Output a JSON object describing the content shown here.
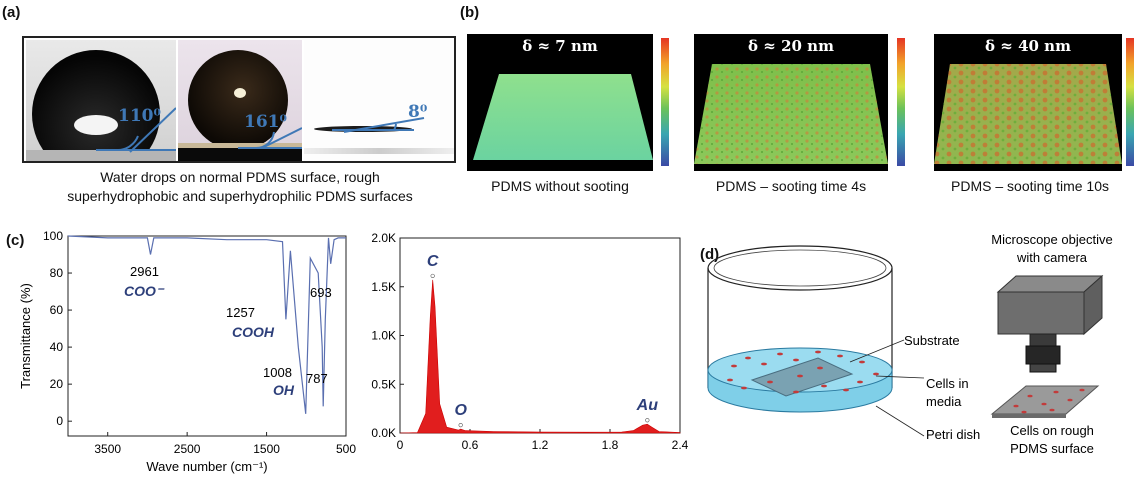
{
  "panel_a": {
    "label": "(a)",
    "angles": [
      "110⁰",
      "161⁰",
      "8⁰"
    ],
    "caption": [
      "Water drops on normal PDMS surface, rough",
      "superhydrophobic and superhydrophilic PDMS surfaces"
    ]
  },
  "panel_b": {
    "label": "(b)",
    "surfaces": [
      {
        "title": "δ ≈ 7 nm",
        "caption": "PDMS without sooting"
      },
      {
        "title": "δ ≈ 20 nm",
        "caption": "PDMS – sooting time 4s"
      },
      {
        "title": "δ ≈ 40 nm",
        "caption": "PDMS – sooting time 10s"
      }
    ]
  },
  "panel_c": {
    "label": "(c)",
    "ftir": {
      "type": "line",
      "ylabel": "Transmittance (%)",
      "xlabel": "Wave number (cm⁻¹)",
      "xticks": [
        "3500",
        "2500",
        "1500",
        "500"
      ],
      "yticks": [
        "100",
        "80",
        "60",
        "40",
        "20",
        "0"
      ],
      "xlim": [
        4000,
        500
      ],
      "ylim": [
        -8,
        100
      ],
      "peaks": [
        {
          "wavenumber": "2961",
          "group": "COO⁻"
        },
        {
          "wavenumber": "1257",
          "group": "COOH"
        },
        {
          "wavenumber": "1008",
          "group": "OH"
        },
        {
          "wavenumber": "787",
          "group": ""
        },
        {
          "wavenumber": "693",
          "group": ""
        }
      ]
    },
    "eds": {
      "type": "area",
      "xticks": [
        "0",
        "0.6",
        "1.2",
        "1.8",
        "2.4"
      ],
      "yticks": [
        "2.0K",
        "1.5K",
        "1.0K",
        "0.5K",
        "0.0K"
      ],
      "xlim": [
        0,
        2.4
      ],
      "ylim": [
        0,
        2000
      ],
      "elements": [
        {
          "symbol": "C",
          "energy": 0.28,
          "counts": 1570
        },
        {
          "symbol": "O",
          "energy": 0.52,
          "counts": 40
        },
        {
          "symbol": "Au",
          "energy": 2.12,
          "counts": 90
        }
      ]
    }
  },
  "panel_d": {
    "label": "(d)",
    "labels": {
      "objective": [
        "Microscope objective",
        "with camera"
      ],
      "substrate": "Substrate",
      "cells_media": [
        "Cells in",
        "media"
      ],
      "petri": "Petri dish",
      "cells_rough": [
        "Cells on rough",
        "PDMS surface"
      ]
    }
  },
  "chart_data": [
    {
      "type": "line",
      "title": "",
      "xlabel": "Wave number (cm⁻¹)",
      "ylabel": "Transmittance (%)",
      "xlim": [
        4000,
        500
      ],
      "ylim": [
        -8,
        100
      ],
      "x": [
        4000,
        3500,
        3000,
        2961,
        2920,
        2500,
        2000,
        1500,
        1300,
        1257,
        1200,
        1100,
        1008,
        950,
        850,
        800,
        787,
        760,
        720,
        693,
        650,
        600,
        500
      ],
      "series": [
        {
          "values": [
            100,
            99,
            99,
            90,
            99,
            99,
            98,
            98,
            97,
            55,
            92,
            40,
            4,
            88,
            80,
            40,
            8,
            55,
            99,
            85,
            98,
            99,
            99
          ]
        }
      ]
    },
    {
      "type": "area",
      "title": "",
      "xlabel": "",
      "ylabel": "",
      "xlim": [
        0,
        2.4
      ],
      "ylim": [
        0,
        2000
      ],
      "x": [
        0,
        0.15,
        0.22,
        0.26,
        0.28,
        0.3,
        0.34,
        0.4,
        0.5,
        0.52,
        0.56,
        0.8,
        1.2,
        1.6,
        1.9,
        2.0,
        2.08,
        2.12,
        2.16,
        2.22,
        2.4
      ],
      "series": [
        {
          "name": "",
          "values": [
            0,
            5,
            200,
            1200,
            1570,
            1300,
            300,
            60,
            30,
            40,
            25,
            15,
            10,
            8,
            10,
            25,
            80,
            90,
            60,
            15,
            5
          ]
        }
      ]
    }
  ]
}
